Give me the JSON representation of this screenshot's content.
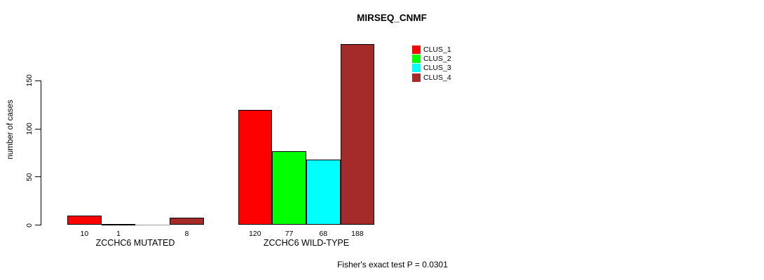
{
  "title": "MIRSEQ_CNMF",
  "chart_data": {
    "type": "bar",
    "title": "MIRSEQ_CNMF",
    "ylabel": "number of cases",
    "yticks": [
      0,
      50,
      100,
      150
    ],
    "ylim": [
      0,
      197
    ],
    "grid": false,
    "legend_position": "top-right",
    "series_names": [
      "CLUS_1",
      "CLUS_2",
      "CLUS_3",
      "CLUS_4"
    ],
    "series_colors": [
      "#FF0000",
      "#00FF00",
      "#00FFFF",
      "#A52A2A"
    ],
    "groups": [
      {
        "label": "ZCCHC6 MUTATED",
        "values": [
          10,
          1,
          0,
          8
        ],
        "value_labels": [
          "10",
          "1",
          "",
          "8"
        ]
      },
      {
        "label": "ZCCHC6 WILD-TYPE",
        "values": [
          120,
          77,
          68,
          188
        ],
        "value_labels": [
          "120",
          "77",
          "68",
          "188"
        ]
      }
    ],
    "annotation": "Fisher's exact test P = 0.0301"
  }
}
